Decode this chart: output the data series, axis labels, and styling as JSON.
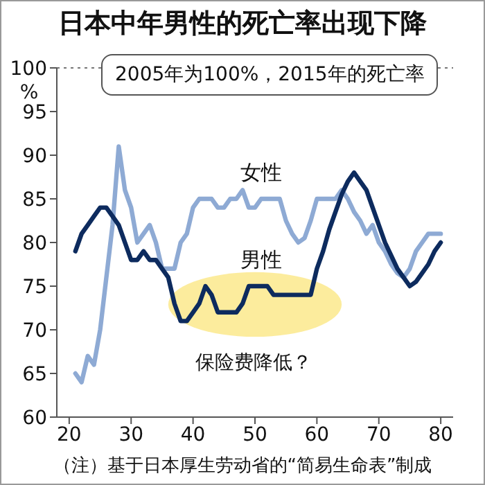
{
  "chart_data": {
    "type": "line",
    "title": "日本中年男性的死亡率出现下降",
    "subtitle": "2005年为100%，2015年的死亡率",
    "ylabel": "%",
    "x": [
      21,
      22,
      23,
      24,
      25,
      26,
      27,
      28,
      29,
      30,
      31,
      32,
      33,
      34,
      35,
      36,
      37,
      38,
      39,
      40,
      41,
      42,
      43,
      44,
      45,
      46,
      47,
      48,
      49,
      50,
      51,
      52,
      53,
      54,
      55,
      56,
      57,
      58,
      59,
      60,
      61,
      62,
      63,
      64,
      65,
      66,
      67,
      68,
      69,
      70,
      71,
      72,
      73,
      74,
      75,
      76,
      77,
      78,
      79,
      80
    ],
    "series": [
      {
        "name": "女性",
        "color": "#8eaad4",
        "values": [
          65,
          64,
          67,
          66,
          70,
          76,
          82,
          91,
          86,
          84,
          80,
          81,
          82,
          80,
          77,
          77,
          77,
          80,
          81,
          84,
          85,
          85,
          85,
          84,
          84,
          85,
          85,
          86,
          84,
          84,
          85,
          85,
          85,
          85,
          82.5,
          81,
          80,
          80.5,
          82.5,
          85,
          85,
          85,
          85,
          86,
          85,
          83.5,
          82.5,
          81,
          82,
          80,
          79,
          77.5,
          76.5,
          76,
          77,
          79,
          80,
          81,
          81,
          81
        ]
      },
      {
        "name": "男性",
        "color": "#0d2b5e",
        "values": [
          79,
          81,
          82,
          83,
          84,
          84,
          83,
          82,
          80,
          78,
          78,
          79,
          78,
          78,
          77,
          76,
          73,
          71,
          71,
          72,
          73,
          75,
          74,
          72,
          72,
          72,
          72,
          73,
          75,
          75,
          75,
          75,
          74,
          74,
          74,
          74,
          74,
          74,
          74,
          77,
          79,
          81.5,
          83.5,
          85.5,
          87,
          88,
          87,
          86,
          84,
          82,
          80,
          78.5,
          77,
          76,
          75,
          75.5,
          76.5,
          77.5,
          79,
          80
        ]
      }
    ],
    "xlim": [
      18,
      82
    ],
    "xticks": [
      20,
      30,
      40,
      50,
      60,
      70,
      80
    ],
    "ylim": [
      60,
      100
    ],
    "yticks": [
      60,
      65,
      70,
      75,
      80,
      85,
      90,
      95,
      100
    ],
    "ref_lines": [
      {
        "axis": "y",
        "value": 100,
        "color": "#777777",
        "line_style": "dotted"
      }
    ],
    "annotations": [
      "保险费降低？",
      "（注）基于日本厚生劳动省的“简易生命表”制成"
    ],
    "grid": false,
    "marker": "none",
    "line_style": "solid"
  }
}
